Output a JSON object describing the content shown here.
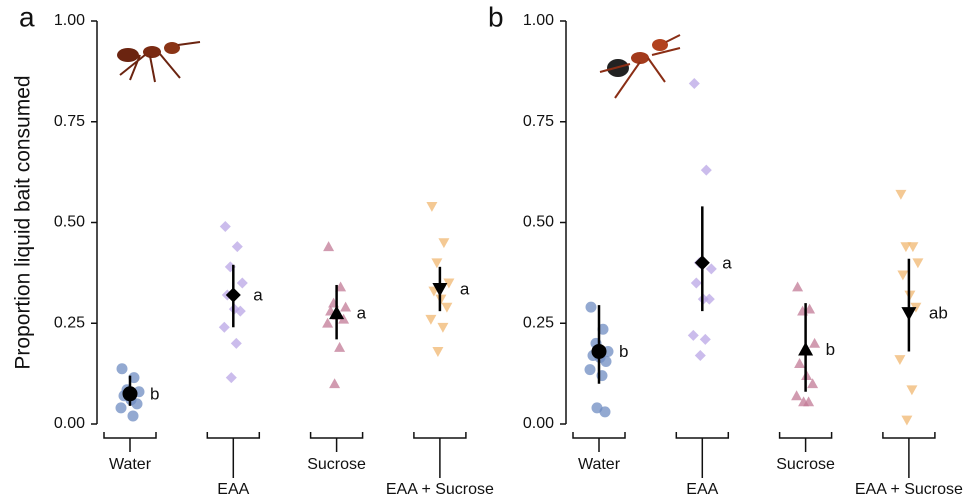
{
  "chart_data": [
    {
      "type": "strip",
      "panel": "a",
      "ylabel": "Proportion liquid bait consumed",
      "categories": [
        "Water",
        "EAA",
        "Sucrose",
        "EAA + Sucrose"
      ],
      "ylim": [
        0,
        1
      ],
      "yticks": [
        {
          "value": 0,
          "label": "0.00"
        },
        {
          "value": 0.25,
          "label": "0.25"
        },
        {
          "value": 0.5,
          "label": "0.50"
        },
        {
          "value": 0.75,
          "label": "0.75"
        },
        {
          "value": 1,
          "label": "1.00"
        }
      ],
      "groups": [
        {
          "marker": "circle",
          "color": "#6f8cc2",
          "values": [
            0.137,
            0.115,
            0.085,
            0.08,
            0.07,
            0.06,
            0.05,
            0.04,
            0.02
          ],
          "mean": 0.075,
          "ci": [
            0.045,
            0.12
          ],
          "letter": "b"
        },
        {
          "marker": "diamond",
          "color": "#b9a6e6",
          "values": [
            0.49,
            0.44,
            0.39,
            0.35,
            0.32,
            0.285,
            0.28,
            0.24,
            0.2,
            0.115
          ],
          "mean": 0.32,
          "ci": [
            0.24,
            0.395
          ],
          "letter": "a"
        },
        {
          "marker": "triangle-up",
          "color": "#c27a96",
          "values": [
            0.44,
            0.34,
            0.3,
            0.29,
            0.28,
            0.27,
            0.26,
            0.25,
            0.19,
            0.1
          ],
          "mean": 0.275,
          "ci": [
            0.21,
            0.345
          ],
          "letter": "a"
        },
        {
          "marker": "triangle-down",
          "color": "#f0b770",
          "values": [
            0.54,
            0.45,
            0.4,
            0.35,
            0.33,
            0.31,
            0.29,
            0.26,
            0.24,
            0.18
          ],
          "mean": 0.335,
          "ci": [
            0.28,
            0.39
          ],
          "letter": "a"
        }
      ]
    },
    {
      "type": "strip",
      "panel": "b",
      "categories": [
        "Water",
        "EAA",
        "Sucrose",
        "EAA + Sucrose"
      ],
      "ylim": [
        0,
        1
      ],
      "yticks": [
        {
          "value": 0,
          "label": "0.00"
        },
        {
          "value": 0.25,
          "label": "0.25"
        },
        {
          "value": 0.5,
          "label": "0.50"
        },
        {
          "value": 0.75,
          "label": "0.75"
        },
        {
          "value": 1,
          "label": "1.00"
        }
      ],
      "groups": [
        {
          "marker": "circle",
          "color": "#6f8cc2",
          "values": [
            0.29,
            0.235,
            0.2,
            0.18,
            0.17,
            0.165,
            0.155,
            0.135,
            0.12,
            0.04,
            0.03
          ],
          "mean": 0.18,
          "ci": [
            0.1,
            0.295
          ],
          "letter": "b"
        },
        {
          "marker": "diamond",
          "color": "#b9a6e6",
          "values": [
            0.845,
            0.63,
            0.4,
            0.385,
            0.35,
            0.31,
            0.31,
            0.22,
            0.21,
            0.17
          ],
          "mean": 0.4,
          "ci": [
            0.28,
            0.54
          ],
          "letter": "a"
        },
        {
          "marker": "triangle-up",
          "color": "#c27a96",
          "values": [
            0.34,
            0.285,
            0.28,
            0.2,
            0.15,
            0.12,
            0.1,
            0.07,
            0.055,
            0.055
          ],
          "mean": 0.185,
          "ci": [
            0.08,
            0.3
          ],
          "letter": "b"
        },
        {
          "marker": "triangle-down",
          "color": "#f0b770",
          "values": [
            0.57,
            0.44,
            0.44,
            0.4,
            0.37,
            0.32,
            0.29,
            0.16,
            0.085,
            0.01
          ],
          "mean": 0.275,
          "ci": [
            0.18,
            0.41
          ],
          "letter": "ab"
        }
      ]
    }
  ]
}
